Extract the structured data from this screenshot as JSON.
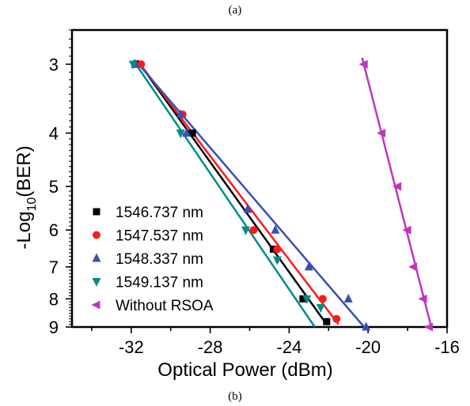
{
  "caption_top": "(a)",
  "caption_bottom": "(b)",
  "chart_data": {
    "type": "scatter",
    "xlabel": "Optical Power (dBm)",
    "ylabel_prefix": "-Log",
    "ylabel_sub": "10",
    "ylabel_suffix": "(BER)",
    "xlim": [
      -35,
      -16
    ],
    "x_ticks": [
      -32,
      -28,
      -24,
      -20,
      -16
    ],
    "x_tick_labels": [
      "-32",
      "-28",
      "-24",
      "-20",
      "-16"
    ],
    "y_scale": "-log10(-log10(BER))",
    "ylim": [
      2.6,
      9
    ],
    "y_ticks": [
      3,
      4,
      5,
      6,
      7,
      8,
      9
    ],
    "y_tick_labels": [
      "3",
      "4",
      "5",
      "6",
      "7",
      "8",
      "9"
    ],
    "legend_position": "left",
    "grid": false,
    "series": [
      {
        "name": "1546.737 nm",
        "color": "#000000",
        "marker": "square",
        "points": [
          [
            -31.6,
            3.0
          ],
          [
            -28.9,
            4.0
          ],
          [
            -24.8,
            6.5
          ],
          [
            -23.3,
            8.0
          ],
          [
            -22.1,
            8.8
          ]
        ],
        "fit": [
          [
            -31.7,
            2.95
          ],
          [
            -22.1,
            8.9
          ]
        ]
      },
      {
        "name": "1547.537 nm",
        "color": "#ff1a1a",
        "marker": "circle",
        "points": [
          [
            -31.5,
            3.0
          ],
          [
            -29.4,
            3.7
          ],
          [
            -25.8,
            6.0
          ],
          [
            -24.6,
            6.5
          ],
          [
            -22.3,
            8.0
          ],
          [
            -21.6,
            8.7
          ]
        ],
        "fit": [
          [
            -31.7,
            2.95
          ],
          [
            -21.5,
            8.9
          ]
        ]
      },
      {
        "name": "1548.337 nm",
        "color": "#3a4fb5",
        "marker": "triangle-up",
        "points": [
          [
            -31.8,
            3.0
          ],
          [
            -29.5,
            3.7
          ],
          [
            -29.2,
            4.0
          ],
          [
            -26.1,
            5.5
          ],
          [
            -24.7,
            6.0
          ],
          [
            -23.0,
            7.0
          ],
          [
            -21.0,
            8.0
          ],
          [
            -20.1,
            9.0
          ]
        ],
        "fit": [
          [
            -31.8,
            2.95
          ],
          [
            -20.2,
            9.0
          ]
        ]
      },
      {
        "name": "1549.137 nm",
        "color": "#008b8b",
        "marker": "triangle-down",
        "points": [
          [
            -31.9,
            3.0
          ],
          [
            -29.5,
            4.0
          ],
          [
            -26.2,
            6.0
          ],
          [
            -24.6,
            6.8
          ],
          [
            -23.1,
            8.0
          ],
          [
            -22.4,
            8.3
          ]
        ],
        "fit": [
          [
            -31.9,
            2.95
          ],
          [
            -22.7,
            9.0
          ]
        ]
      },
      {
        "name": "Without RSOA",
        "color": "#c034c0",
        "marker": "triangle-left",
        "points": [
          [
            -20.2,
            3.0
          ],
          [
            -19.3,
            4.0
          ],
          [
            -18.5,
            5.0
          ],
          [
            -18.0,
            6.0
          ],
          [
            -17.7,
            7.0
          ],
          [
            -17.2,
            8.0
          ],
          [
            -16.9,
            9.0
          ]
        ],
        "fit": [
          [
            -20.3,
            2.92
          ],
          [
            -16.8,
            9.0
          ]
        ]
      }
    ]
  }
}
